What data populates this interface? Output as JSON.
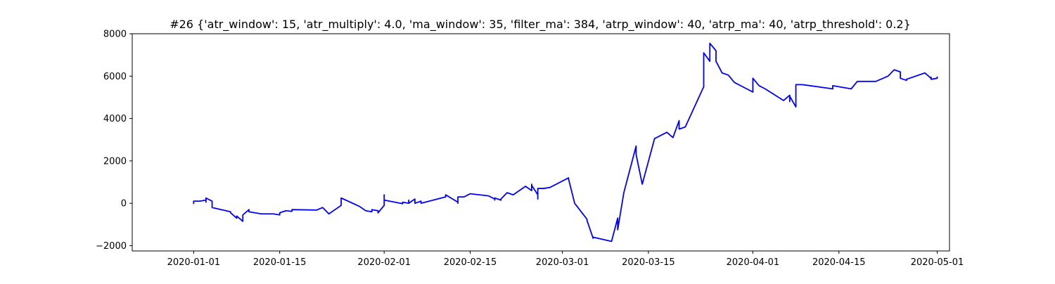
{
  "chart_data": {
    "type": "line",
    "title": "#26 {'atr_window': 15, 'atr_multiply': 4.0, 'ma_window': 35, 'filter_ma': 384, 'atrp_window': 40, 'atrp_ma': 40, 'atrp_threshold': 0.2}",
    "xlabel": "",
    "ylabel": "",
    "x_type": "date",
    "xlim": [
      "2019-12-22",
      "2020-05-03"
    ],
    "ylim": [
      -2250,
      8000
    ],
    "x_ticks": [
      "2020-01-01",
      "2020-01-15",
      "2020-02-01",
      "2020-02-15",
      "2020-03-01",
      "2020-03-15",
      "2020-04-01",
      "2020-04-15",
      "2020-05-01"
    ],
    "y_ticks": [
      -2000,
      0,
      2000,
      4000,
      6000,
      8000
    ],
    "y_tick_labels": [
      "−2000",
      "0",
      "2000",
      "4000",
      "6000",
      "8000"
    ],
    "grid": false,
    "line_color": "#0000ff",
    "series": [
      {
        "x": [
          "2020-01-01",
          "2020-01-01",
          "2020-01-02",
          "2020-01-03",
          "2020-01-03",
          "2020-01-03",
          "2020-01-04",
          "2020-01-04",
          "2020-01-04",
          "2020-01-07",
          "2020-01-07",
          "2020-01-08",
          "2020-01-08",
          "2020-01-09",
          "2020-01-09",
          "2020-01-10",
          "2020-01-10",
          "2020-01-12",
          "2020-01-14",
          "2020-01-15",
          "2020-01-15",
          "2020-01-16",
          "2020-01-17",
          "2020-01-17",
          "2020-01-21",
          "2020-01-22",
          "2020-01-23",
          "2020-01-25",
          "2020-01-25",
          "2020-01-28",
          "2020-01-29",
          "2020-01-30",
          "2020-01-30",
          "2020-01-31",
          "2020-01-31",
          "2020-02-01",
          "2020-02-01",
          "2020-02-01",
          "2020-02-04",
          "2020-02-04",
          "2020-02-05",
          "2020-02-05",
          "2020-02-05",
          "2020-02-06",
          "2020-02-06",
          "2020-02-07",
          "2020-02-07",
          "2020-02-11",
          "2020-02-11",
          "2020-02-13",
          "2020-02-13",
          "2020-02-13",
          "2020-02-14",
          "2020-02-15",
          "2020-02-18",
          "2020-02-19",
          "2020-02-19",
          "2020-02-19",
          "2020-02-20",
          "2020-02-20",
          "2020-02-21",
          "2020-02-22",
          "2020-02-24",
          "2020-02-25",
          "2020-02-25",
          "2020-02-25",
          "2020-02-26",
          "2020-02-26",
          "2020-02-26",
          "2020-02-27",
          "2020-02-27",
          "2020-02-28",
          "2020-03-02",
          "2020-03-02",
          "2020-03-03",
          "2020-03-05",
          "2020-03-05",
          "2020-03-06",
          "2020-03-06",
          "2020-03-09",
          "2020-03-10",
          "2020-03-10",
          "2020-03-11",
          "2020-03-13",
          "2020-03-13",
          "2020-03-14",
          "2020-03-16",
          "2020-03-18",
          "2020-03-19",
          "2020-03-20",
          "2020-03-20",
          "2020-03-21",
          "2020-03-24",
          "2020-03-24",
          "2020-03-25",
          "2020-03-25",
          "2020-03-26",
          "2020-03-26",
          "2020-03-27",
          "2020-03-28",
          "2020-03-29",
          "2020-03-31",
          "2020-04-01",
          "2020-04-01",
          "2020-04-02",
          "2020-04-03",
          "2020-04-06",
          "2020-04-07",
          "2020-04-07",
          "2020-04-07",
          "2020-04-08",
          "2020-04-08",
          "2020-04-09",
          "2020-04-14",
          "2020-04-14",
          "2020-04-17",
          "2020-04-18",
          "2020-04-21",
          "2020-04-23",
          "2020-04-24",
          "2020-04-25",
          "2020-04-25",
          "2020-04-26",
          "2020-04-26",
          "2020-04-29",
          "2020-04-30",
          "2020-04-30",
          "2020-04-30",
          "2020-05-01",
          "2020-05-01"
        ],
        "y": [
          0,
          100,
          100,
          150,
          50,
          250,
          100,
          -100,
          -200,
          -400,
          -450,
          -700,
          -600,
          -850,
          -550,
          -300,
          -400,
          -500,
          -500,
          -550,
          -450,
          -350,
          -380,
          -300,
          -320,
          -200,
          -500,
          -100,
          250,
          -150,
          -350,
          -400,
          -300,
          -350,
          -450,
          -100,
          400,
          150,
          -20,
          50,
          0,
          150,
          0,
          200,
          0,
          100,
          0,
          300,
          400,
          50,
          0,
          300,
          300,
          450,
          350,
          200,
          150,
          250,
          150,
          200,
          500,
          400,
          800,
          600,
          900,
          850,
          400,
          200,
          700,
          700,
          700,
          750,
          1200,
          1150,
          0,
          -750,
          -800,
          -1650,
          -1600,
          -1800,
          -700,
          -1250,
          500,
          2700,
          2300,
          900,
          3050,
          3350,
          3100,
          3900,
          3500,
          3600,
          5500,
          7100,
          6700,
          7550,
          7200,
          6700,
          6150,
          6050,
          5700,
          5400,
          5250,
          5900,
          5550,
          5400,
          4850,
          5100,
          4800,
          5050,
          4550,
          5600,
          5600,
          5400,
          5550,
          5400,
          5750,
          5750,
          6000,
          6300,
          6200,
          5900,
          5800,
          5850,
          6150,
          5900,
          5950,
          5850,
          5900,
          5950
        ]
      }
    ]
  }
}
